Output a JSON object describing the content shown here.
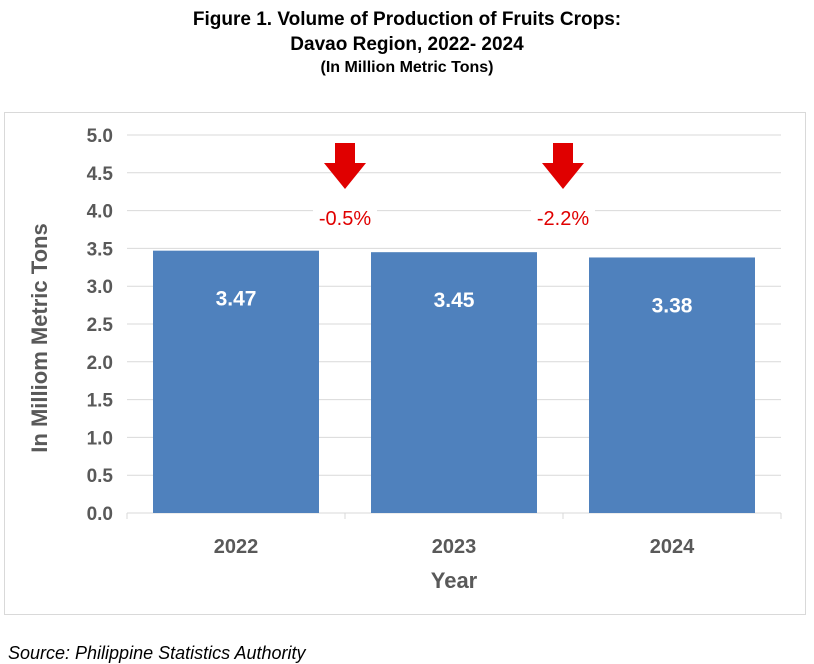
{
  "figure": {
    "title_line1": "Figure 1. Volume of Production of Fruits Crops:",
    "title_line2": "Davao Region, 2022- 2024",
    "subtitle": "(In Million Metric Tons)",
    "source": "Source: Philippine Statistics Authority"
  },
  "chart_data": {
    "type": "bar",
    "title": "Figure 1. Volume of Production of Fruits Crops: Davao Region, 2022- 2024",
    "subtitle": "(In Million Metric Tons)",
    "categories": [
      "2022",
      "2023",
      "2024"
    ],
    "values": [
      3.47,
      3.45,
      3.38
    ],
    "data_labels": [
      "3.47",
      "3.45",
      "3.38"
    ],
    "xlabel": "Year",
    "ylabel": "In Milliom Metric Tons",
    "ylim": [
      0,
      5.0
    ],
    "yticks": [
      "0.0",
      "0.5",
      "1.0",
      "1.5",
      "2.0",
      "2.5",
      "3.0",
      "3.5",
      "4.0",
      "4.5",
      "5.0"
    ],
    "grid": true,
    "annotations": [
      {
        "text": "-0.5%",
        "between": [
          "2022",
          "2023"
        ],
        "direction": "down",
        "arrow_icon": "down-arrow-icon"
      },
      {
        "text": "-2.2%",
        "between": [
          "2023",
          "2024"
        ],
        "direction": "down",
        "arrow_icon": "down-arrow-icon"
      }
    ],
    "colors": {
      "bar": "#4f81bd",
      "annotation": "#e00000",
      "grid": "#d9d9d9",
      "axis_text": "#595959",
      "label_text": "#ffffff"
    }
  }
}
